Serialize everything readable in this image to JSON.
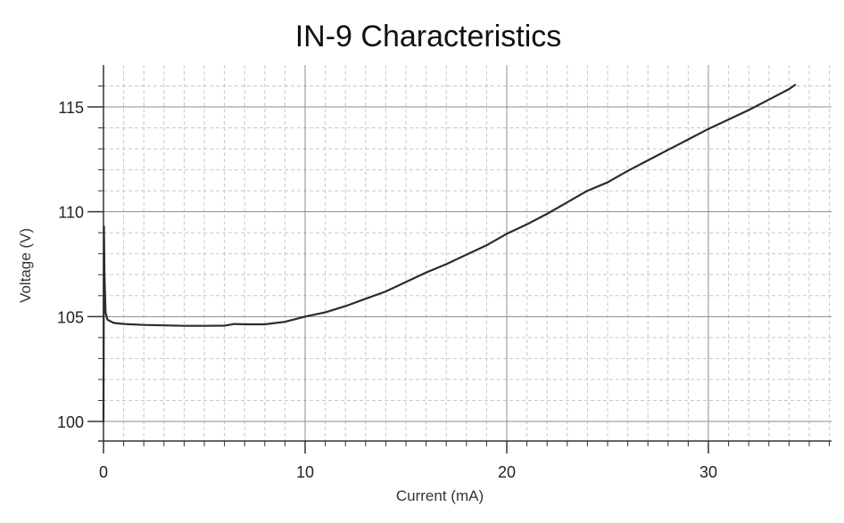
{
  "chart_data": {
    "type": "line",
    "title": "IN-9 Characteristics",
    "xlabel": "Current (mA)",
    "ylabel": "Voltage (V)",
    "xlim": [
      0,
      36
    ],
    "ylim": [
      99,
      117
    ],
    "xticks": [
      0,
      10,
      20,
      30
    ],
    "yticks": [
      100,
      105,
      110,
      115
    ],
    "grid": true,
    "series": [
      {
        "color": "#2b2b2b",
        "points": [
          [
            0.0,
            100.0
          ],
          [
            0.02,
            109.3
          ],
          [
            0.05,
            107.0
          ],
          [
            0.1,
            105.2
          ],
          [
            0.2,
            104.85
          ],
          [
            0.5,
            104.7
          ],
          [
            1.0,
            104.65
          ],
          [
            2.0,
            104.6
          ],
          [
            3.0,
            104.58
          ],
          [
            4.0,
            104.56
          ],
          [
            5.0,
            104.56
          ],
          [
            6.0,
            104.57
          ],
          [
            6.5,
            104.65
          ],
          [
            7.0,
            104.63
          ],
          [
            8.0,
            104.63
          ],
          [
            9.0,
            104.75
          ],
          [
            10.0,
            105.0
          ],
          [
            11.0,
            105.2
          ],
          [
            12.0,
            105.5
          ],
          [
            13.0,
            105.85
          ],
          [
            14.0,
            106.2
          ],
          [
            15.0,
            106.65
          ],
          [
            16.0,
            107.1
          ],
          [
            17.0,
            107.5
          ],
          [
            18.0,
            107.95
          ],
          [
            19.0,
            108.4
          ],
          [
            20.0,
            108.95
          ],
          [
            21.0,
            109.4
          ],
          [
            22.0,
            109.9
          ],
          [
            23.0,
            110.45
          ],
          [
            24.0,
            111.0
          ],
          [
            25.0,
            111.4
          ],
          [
            26.0,
            111.95
          ],
          [
            27.0,
            112.45
          ],
          [
            28.0,
            112.95
          ],
          [
            29.0,
            113.45
          ],
          [
            30.0,
            113.95
          ],
          [
            31.0,
            114.4
          ],
          [
            32.0,
            114.85
          ],
          [
            33.0,
            115.35
          ],
          [
            34.0,
            115.85
          ],
          [
            34.3,
            116.05
          ]
        ]
      }
    ]
  }
}
